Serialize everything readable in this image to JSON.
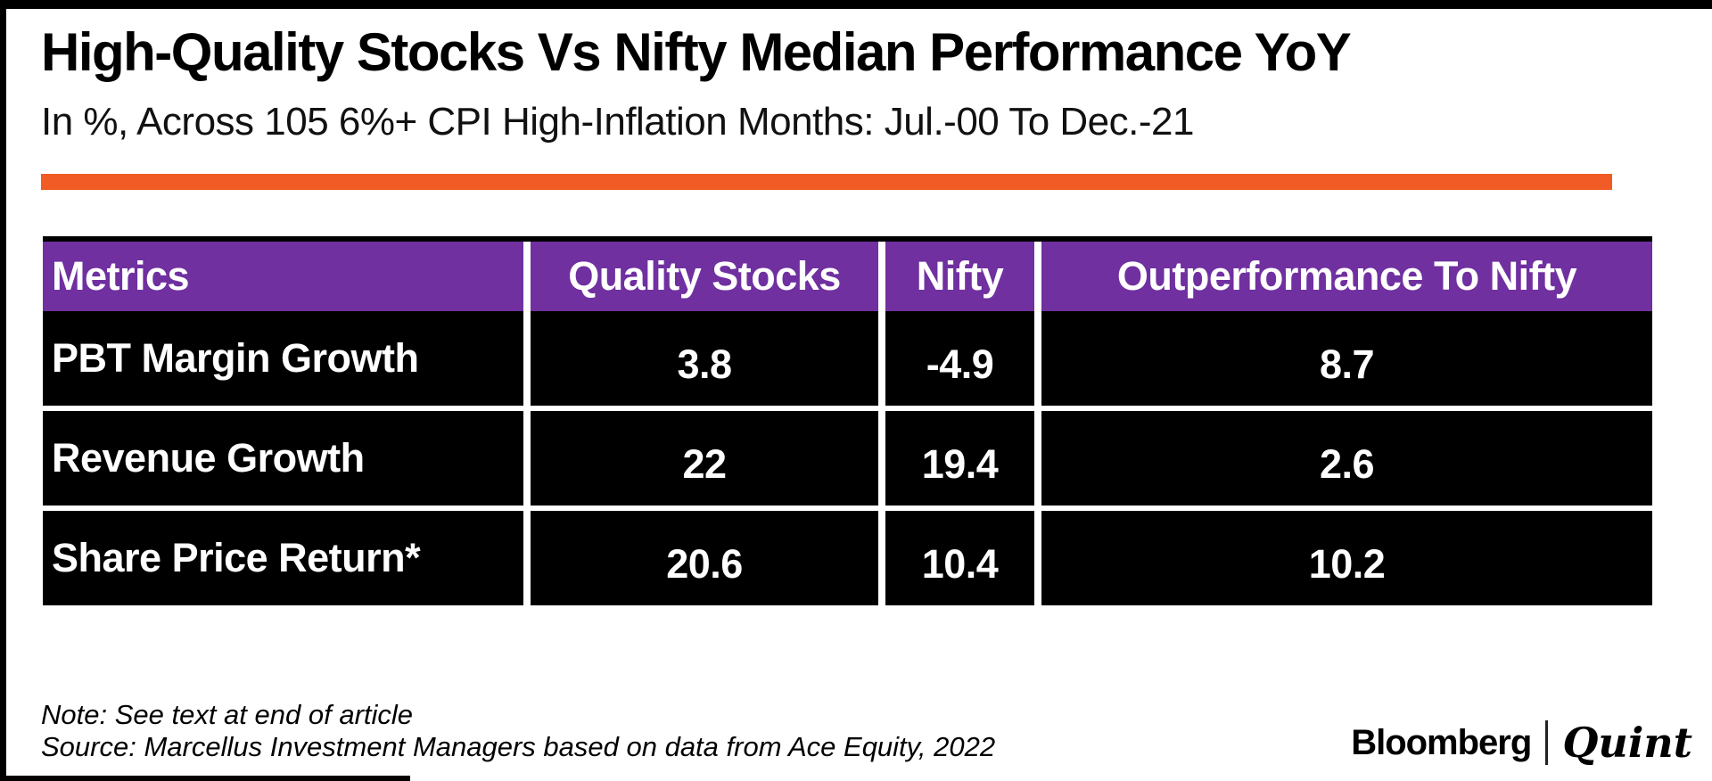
{
  "page": {
    "title": "High-Quality Stocks Vs Nifty Median Performance YoY",
    "subtitle": "In %, Across 105 6%+ CPI High-Inflation Months: Jul.-00 To Dec.-21",
    "accent_orange": "#F15B25",
    "header_purple": "#7030A0",
    "row_background": "#000000",
    "text_on_dark": "#FFFFFF"
  },
  "table": {
    "columns": [
      "Metrics",
      "Quality Stocks",
      "Nifty",
      "Outperformance To Nifty"
    ],
    "rows": [
      {
        "metric": "PBT Margin Growth",
        "values": [
          "3.8",
          "-4.9",
          "8.7"
        ]
      },
      {
        "metric": "Revenue Growth",
        "values": [
          "22",
          "19.4",
          "2.6"
        ]
      },
      {
        "metric": "Share Price Return*",
        "values": [
          "20.6",
          "10.4",
          "10.2"
        ]
      }
    ]
  },
  "footer": {
    "note": "Note: See text at end of article",
    "source": "Source: Marcellus Investment Managers based on data from Ace Equity, 2022",
    "logo": {
      "bloomberg": "Bloomberg",
      "separator": "|",
      "quint": "Quint"
    }
  },
  "chart_data": {
    "type": "table",
    "title": "High-Quality Stocks Vs Nifty Median Performance YoY",
    "subtitle": "In %, Across 105 6%+ CPI High-Inflation Months: Jul.-00 To Dec.-21",
    "unit": "%",
    "columns": [
      "Metrics",
      "Quality Stocks",
      "Nifty",
      "Outperformance To Nifty"
    ],
    "rows": [
      [
        "PBT Margin Growth",
        3.8,
        -4.9,
        8.7
      ],
      [
        "Revenue Growth",
        22,
        19.4,
        2.6
      ],
      [
        "Share Price Return*",
        20.6,
        10.4,
        10.2
      ]
    ],
    "source": "Marcellus Investment Managers based on data from Ace Equity, 2022"
  }
}
